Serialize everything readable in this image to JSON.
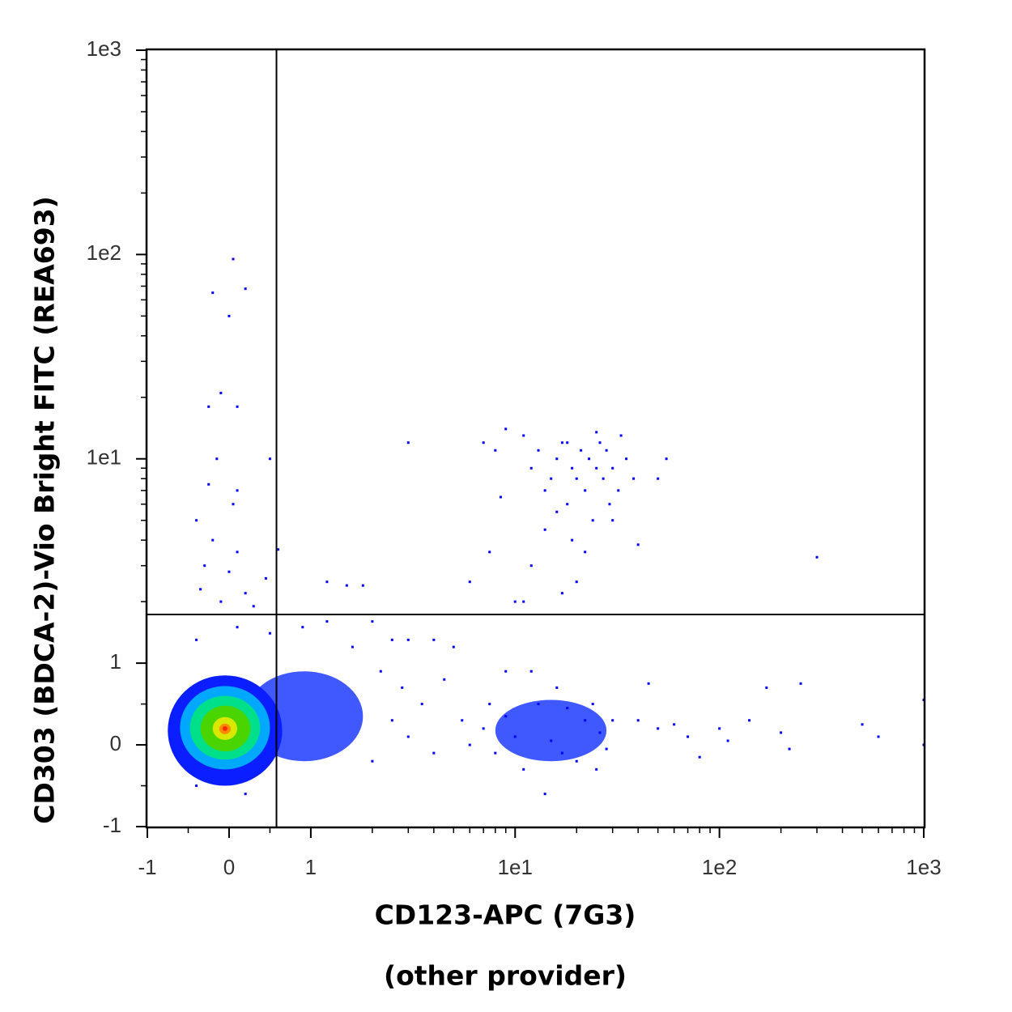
{
  "chart_data": {
    "type": "scatter",
    "scale": "biexponential",
    "xlabel": [
      "CD123-APC (7G3)",
      "(other provider)"
    ],
    "ylabel": "CD303 (BDCA-2)-Vio Bright FITC (REA693)",
    "xlim": [
      -1,
      1000
    ],
    "ylim": [
      -1,
      1000
    ],
    "xticks": [
      -1,
      0,
      1,
      {
        "value": 10,
        "label": "1e1"
      },
      {
        "value": 100,
        "label": "1e2"
      },
      {
        "value": 1000,
        "label": "1e3"
      }
    ],
    "yticks": [
      -1,
      0,
      1,
      {
        "value": 10,
        "label": "1e1"
      },
      {
        "value": 100,
        "label": "1e2"
      },
      {
        "value": 1000,
        "label": "1e3"
      }
    ],
    "xminorticks": [
      -0.5,
      0.5,
      2,
      3,
      4,
      5,
      6,
      7,
      8,
      9,
      20,
      30,
      40,
      50,
      60,
      70,
      80,
      90,
      200,
      300,
      400,
      500,
      600,
      700,
      800,
      900
    ],
    "yminorticks": [
      -0.5,
      0.5,
      2,
      3,
      4,
      5,
      6,
      7,
      8,
      9,
      20,
      30,
      40,
      50,
      60,
      70,
      80,
      90,
      200,
      300,
      400,
      500,
      600,
      700,
      800,
      900
    ],
    "gate": {
      "x": 0.58,
      "y": 1.73
    },
    "density": [
      {
        "color": "#1e3cff",
        "x": [
          0.2,
          1.8
        ],
        "y": [
          -0.2,
          0.9
        ]
      },
      {
        "color": "#1e3cff",
        "x": [
          8,
          28
        ],
        "y": [
          -0.2,
          0.55
        ]
      },
      {
        "color": "#0a1eff",
        "x": [
          -0.75,
          0.65
        ],
        "y": [
          -0.5,
          0.85
        ]
      },
      {
        "color": "#00a8ff",
        "x": [
          -0.6,
          0.5
        ],
        "y": [
          -0.3,
          0.72
        ]
      },
      {
        "color": "#00e08a",
        "x": [
          -0.48,
          0.38
        ],
        "y": [
          -0.18,
          0.6
        ]
      },
      {
        "color": "#4ad400",
        "x": [
          -0.35,
          0.26
        ],
        "y": [
          -0.08,
          0.48
        ]
      },
      {
        "color": "#d8e800",
        "x": [
          -0.2,
          0.1
        ],
        "y": [
          0.06,
          0.34
        ]
      },
      {
        "color": "#ff8c00",
        "x": [
          -0.12,
          0.02
        ],
        "y": [
          0.13,
          0.26
        ]
      },
      {
        "color": "#ff2a00",
        "x": [
          -0.08,
          -0.02
        ],
        "y": [
          0.17,
          0.23
        ]
      }
    ],
    "series": [
      {
        "color": "#0000ff",
        "x": [
          11,
          12,
          13,
          14,
          15,
          16,
          17,
          18,
          19,
          20,
          21,
          22,
          23,
          24,
          25,
          26,
          27,
          28,
          29,
          30,
          32,
          35,
          38,
          14,
          16,
          19,
          22,
          30,
          40,
          9,
          8.5,
          12,
          17,
          20,
          55,
          50,
          10,
          18,
          25,
          33,
          -0.2,
          0,
          0.2,
          0.05,
          -0.25,
          -0.1,
          0.1,
          -0.15,
          0.5,
          -0.25,
          0.1,
          -0.4,
          0.05,
          -0.2,
          0.1,
          0,
          -0.3,
          0.45,
          0.6,
          0.2,
          -0.35,
          -0.1,
          0.3,
          1.2,
          1.5,
          1.8,
          3,
          7,
          6,
          7.5,
          11,
          300,
          8,
          -0.4,
          0.1,
          0.5,
          0.9,
          1.2,
          1.6,
          2,
          2.5,
          3,
          4,
          5,
          2.2,
          2.8,
          3.5,
          4.5,
          5.5,
          6,
          4,
          3,
          2.5,
          2,
          7,
          8,
          7.5,
          40,
          50,
          60,
          70,
          80,
          100,
          110,
          140,
          170,
          200,
          220,
          250,
          500,
          600,
          1000,
          1000,
          0.2,
          -0.4,
          14,
          12,
          45,
          25,
          9,
          16,
          11,
          20,
          13,
          18,
          22,
          26,
          30,
          10,
          9,
          15,
          17,
          24,
          28
        ],
        "values": [
          13,
          9,
          11,
          7,
          8,
          10,
          12,
          6,
          9,
          8,
          11,
          7,
          10,
          5,
          9,
          12,
          8,
          11,
          6,
          9,
          7,
          10,
          8,
          4.5,
          5.5,
          4,
          3.5,
          5,
          3.8,
          14,
          6.5,
          3,
          2.2,
          2.5,
          10,
          8,
          2,
          12,
          13.5,
          13,
          65,
          50,
          68,
          95,
          18,
          21,
          18,
          10,
          10,
          7.5,
          7,
          5,
          6,
          4,
          3.5,
          2.8,
          3,
          2.6,
          3.6,
          2.2,
          2.3,
          2,
          1.9,
          2.5,
          2.4,
          2.4,
          12,
          12,
          2.5,
          3.5,
          2,
          3.3,
          11,
          1.3,
          1.5,
          1.4,
          1.5,
          1.6,
          1.2,
          1.6,
          1.3,
          1.3,
          1.3,
          1.2,
          0.9,
          0.7,
          0.5,
          0.8,
          0.3,
          0,
          -0.1,
          0.1,
          0.3,
          -0.2,
          0.2,
          -0.1,
          0.5,
          0.3,
          0.2,
          0.25,
          0.1,
          -0.15,
          0.2,
          0.05,
          0.3,
          0.7,
          0.15,
          -0.05,
          0.75,
          0.25,
          0.1,
          0.55,
          0,
          -0.6,
          -0.5,
          -0.6,
          0.9,
          0.75,
          -0.3,
          0.9,
          0.7,
          -0.3,
          -0.2,
          0.5,
          0.45,
          0.3,
          0.15,
          0.3,
          0.1,
          0.35,
          0.05,
          -0.1,
          0.5,
          -0.05
        ]
      }
    ]
  }
}
